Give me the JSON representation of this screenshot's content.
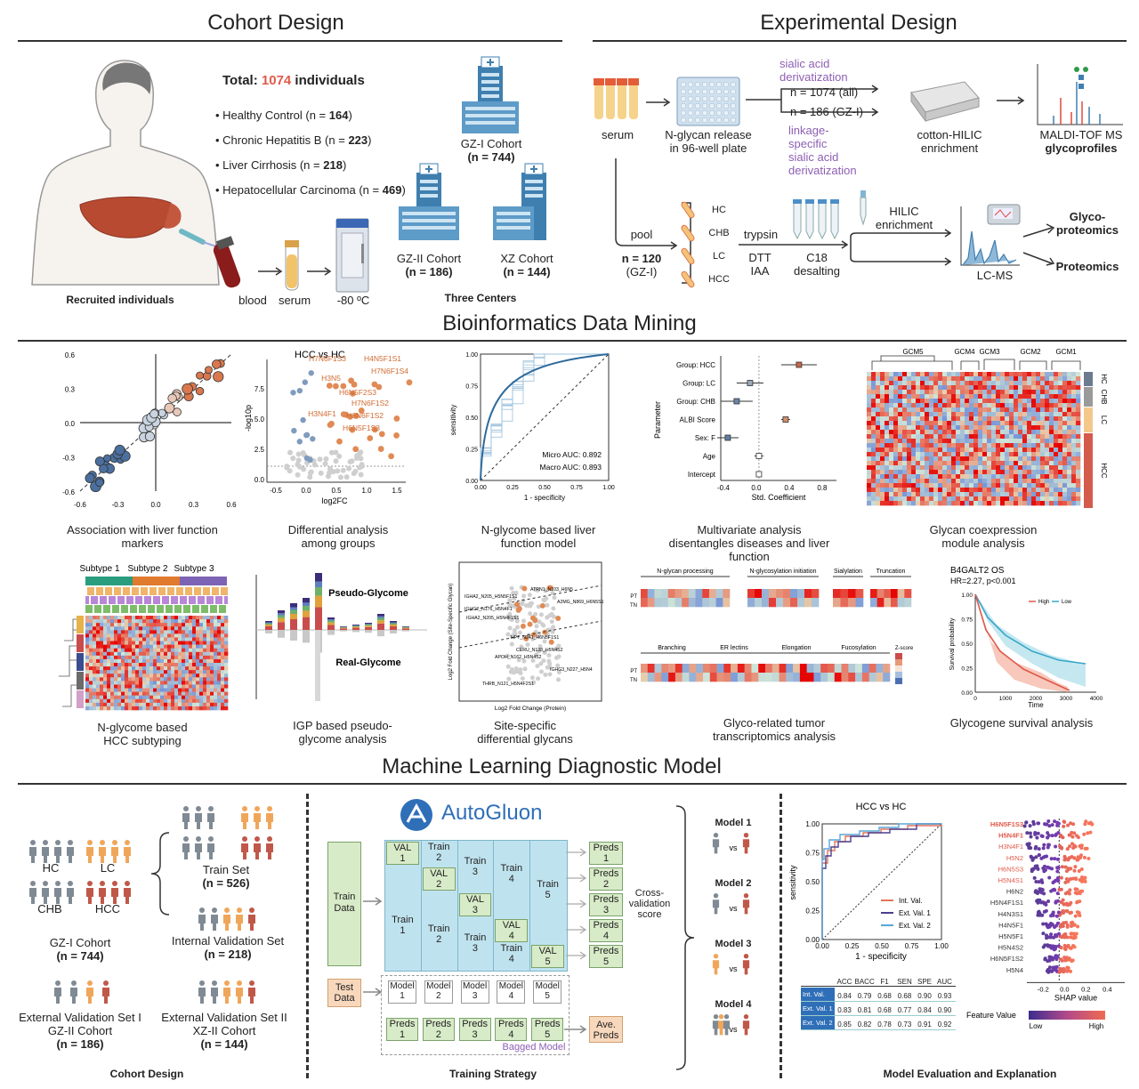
{
  "sections": {
    "cohort_design": "Cohort Design",
    "experimental_design": "Experimental Design",
    "bioinformatics": "Bioinformatics Data Mining",
    "ml": "Machine Learning Diagnostic Model"
  },
  "cohort": {
    "total_prefix": "Total: ",
    "total_number": "1074",
    "total_suffix": " individuals",
    "groups": [
      {
        "label": "Healthy Control (n = ",
        "n": "164",
        "end": ")"
      },
      {
        "label": "Chronic Hepatitis B (n = ",
        "n": "223",
        "end": ")"
      },
      {
        "label": "Liver Cirrhosis (n = ",
        "n": "218",
        "end": ")"
      },
      {
        "label": "Hepatocellular Carcinoma (n = ",
        "n": "469",
        "end": ")"
      }
    ],
    "gz1": {
      "name": "GZ-I Cohort",
      "n": "(n = 744)"
    },
    "gz2": {
      "name": "GZ-II Cohort",
      "n": "(n = 186)"
    },
    "xz": {
      "name": "XZ Cohort",
      "n": "(n = 144)"
    },
    "three_centers": "Three Centers",
    "recruited": "Recruited individuals",
    "blood": "blood",
    "serum": "serum",
    "freeze": "-80 ºC"
  },
  "experimental": {
    "serum": "serum",
    "release": "N-glycan release\nin 96-well plate",
    "sialic": "sialic acid\nderivatization",
    "n_all": "n = 1074 (all)",
    "n_gz": "n = 186 (GZ-I)",
    "linkage": "linkage-\nspecific\nsialic acid\nderivatization",
    "cotton": "cotton-HILIC\nenrichment",
    "maldi": "MALDI-TOF MS",
    "glycoprofiles": "glycoprofiles",
    "pool": "pool",
    "pool_n": "n = 120",
    "pool_src": "(GZ-I)",
    "groups": [
      "HC",
      "CHB",
      "LC",
      "HCC"
    ],
    "trypsin": "trypsin",
    "dtt": "DTT\nIAA",
    "c18": "C18\ndesalting",
    "hilic": "HILIC\nenrichment",
    "lcms": "LC-MS",
    "glycoproteomics": "Glyco-\nproteomics",
    "proteomics": "Proteomics"
  },
  "bio": {
    "captions": [
      "Association  with liver function\nmarkers",
      "Differential analysis\namong groups",
      "N-glycome based liver\nfunction model",
      "Multivariate analysis\ndisentangles diseases and liver\nfunction",
      "Glycan coexpression\nmodule analysis",
      "N-glycome based\nHCC subtyping",
      "IGP based pseudo-\nglycome analysis",
      "Site-specific\ndifferential glycans",
      "Glyco-related tumor\ntranscriptomics analysis",
      "Glycogene survival analysis"
    ],
    "volcano": {
      "title": "HCC vs HC",
      "xlabel": "log2FC",
      "ylabel": "-log10p",
      "xticks": [
        "-0.5",
        "0.0",
        "0.5",
        "1.0",
        "1.5"
      ],
      "yticks": [
        "0.0",
        "2.5",
        "5.0",
        "7.5"
      ],
      "labels": [
        "H7N6F1S3",
        "H4N5F1S1",
        "H7N6F1S4",
        "H3N5",
        "H6N5F2S3",
        "H7N6F1S2",
        "H3N4F1",
        "H6N6F1S2",
        "H6N5F1S3"
      ]
    },
    "assoc": {
      "xticks": [
        "-0.6",
        "-0.3",
        "0.0",
        "0.3",
        "0.6"
      ],
      "yticks": [
        "0.6",
        "0.3",
        "0.0",
        "-0.3",
        "-0.6"
      ]
    },
    "roc": {
      "xlabel": "1 - specificity",
      "ylabel": "sensitivity",
      "ticks": [
        "0.00",
        "0.25",
        "0.50",
        "0.75",
        "1.00"
      ],
      "micro": "Micro AUC: 0.892",
      "macro": "Macro AUC: 0.893"
    },
    "forest": {
      "ylabel": "Parameter",
      "xlabel": "Std. Coefficient",
      "params": [
        "Group: HCC",
        "Group: LC",
        "Group: CHB",
        "ALBI Score",
        "Sex: F",
        "Age",
        "Intercept"
      ],
      "xticks": [
        "-0.4",
        "0.0",
        "0.4",
        "0.8"
      ]
    },
    "gcm": {
      "modules": [
        "GCM5",
        "GCM4",
        "GCM3",
        "GCM2",
        "GCM1"
      ],
      "groups": [
        "HC",
        "CHB",
        "LC",
        "HCC"
      ]
    },
    "subtype": {
      "labels": [
        "Subtype 1",
        "Subtype 2",
        "Subtype 3"
      ]
    },
    "igp": {
      "pseudo": "Pseudo-Glycome",
      "real": "Real-Glycome"
    },
    "site": {
      "xlabel": "Log2 Fold Change (Protein)",
      "ylabel": "Log2 Fold Change (Site-Specific Glycan)",
      "labels": [
        "IGHA2_N205_H5N5F1S1",
        "ATRN1_N103_H6N5",
        "IGHG2_N176_H5N4F1",
        "A2MG_N869_H6N5S1",
        "IGHA2_N205_H5N4F1S1",
        "HPT_N241_H6N5F1S1",
        "CERU_N138_H5N4S2",
        "APOH_N162_H5N4S2",
        "THRB_N121_H5N4F2S1",
        "IGHG3_N227_H5N4"
      ]
    },
    "transcript": {
      "top": [
        "N-glycan processing",
        "N-glycosylation initiation",
        "Sialylation",
        "Truncation"
      ],
      "bottom": [
        "Branching",
        "ER lectins",
        "Elongation",
        "Fucosylation"
      ],
      "zscore": "Z-score",
      "rows": [
        "PT",
        "TN"
      ]
    },
    "survival": {
      "title": "B4GALT2 OS",
      "hr": "HR=2.27, p<0.001",
      "high": "High",
      "low": "Low",
      "xlabel": "Time",
      "ylabel": "Survival probability",
      "xticks": [
        "0",
        "1000",
        "2000",
        "3000",
        "4000"
      ],
      "yticks": [
        "1.00",
        "0.75",
        "0.50",
        "0.25",
        "0.00"
      ]
    }
  },
  "ml": {
    "hc": "HC",
    "lc": "LC",
    "chb": "CHB",
    "hcc": "HCC",
    "gz1": "GZ-I Cohort",
    "gz1_n": "(n = 744)",
    "train": "Train Set",
    "train_n": "(n = 526)",
    "internal": "Internal Validation Set",
    "internal_n": "(n = 218)",
    "ext1": "External Validation Set I",
    "ext1_src": "GZ-II Cohort",
    "ext1_n": "(n = 186)",
    "ext2": "External Validation Set II",
    "ext2_src": "XZ-II Cohort",
    "ext2_n": "(n = 144)",
    "cohort_design": "Cohort Design",
    "autogluon": "AutoGluon",
    "train_data": "Train\nData",
    "test_data": "Test\nData",
    "val": "VAL",
    "train_word": "Train",
    "preds": "Preds",
    "model": "Model",
    "ave_preds": "Ave.\nPreds",
    "cv_score": "Cross-\nvalidation\nscore",
    "bagged": "Bagged Model",
    "training_strategy": "Training Strategy",
    "models": [
      "Model 1",
      "Model 2",
      "Model 3",
      "Model 4"
    ],
    "vs": "vs",
    "roc": {
      "title": "HCC vs HC",
      "xlabel": "1 - specificity",
      "ylabel": "sensitivity",
      "ticks": [
        "0.00",
        "0.25",
        "0.50",
        "0.75",
        "1.00"
      ],
      "legend": [
        "Int. Val.",
        "Ext. Val. 1",
        "Ext. Val. 2"
      ],
      "legend_colors": [
        "#e3745a",
        "#4b3f8f",
        "#5aa6d6"
      ]
    },
    "table": {
      "headers": [
        "ACC",
        "BACC",
        "F1",
        "SEN",
        "SPE",
        "AUC"
      ],
      "rows": [
        {
          "name": "Int. Val.",
          "vals": [
            "0.84",
            "0.79",
            "0.68",
            "0.68",
            "0.90",
            "0.93"
          ]
        },
        {
          "name": "Ext. Val. 1",
          "vals": [
            "0.83",
            "0.81",
            "0.68",
            "0.77",
            "0.84",
            "0.90"
          ]
        },
        {
          "name": "Ext. Val. 2",
          "vals": [
            "0.85",
            "0.82",
            "0.78",
            "0.73",
            "0.91",
            "0.92"
          ]
        }
      ]
    },
    "shap": {
      "features": [
        "H6N5F1S3",
        "H5N4F1",
        "H3N4F1",
        "H5N2",
        "H6N5S3",
        "H5N4S1",
        "H6N2",
        "H5N4F1S1",
        "H4N3S1",
        "H4N5F1",
        "H5N5F1",
        "H5N4S2",
        "H6N5F1S2",
        "H5N4"
      ],
      "red_count": 6,
      "xlabel": "SHAP value",
      "xticks": [
        "-0.2",
        "0.0",
        "0.2",
        "0.4"
      ],
      "feature_value": "Feature Value",
      "low": "Low",
      "high": "High"
    },
    "eval": "Model Evaluation and Explanation"
  }
}
